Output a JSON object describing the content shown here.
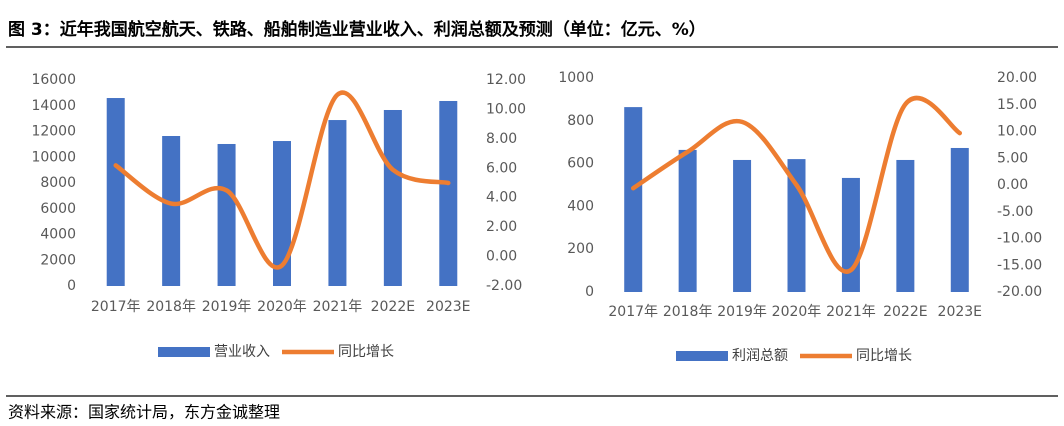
{
  "title": "图 3：近年我国航空航天、铁路、船舶制造业营业收入、利润总额及预测（单位：亿元、%）",
  "source": "资料来源：国家统计局，东方金诚整理",
  "chart_data": [
    {
      "type": "combo",
      "categories": [
        "2017年",
        "2018年",
        "2019年",
        "2020年",
        "2021年",
        "2022E",
        "2023E"
      ],
      "series": [
        {
          "name": "营业收入",
          "type": "bar",
          "color": "#4472c4",
          "values": [
            14600,
            11650,
            11030,
            11260,
            12890,
            13670,
            14370
          ]
        },
        {
          "name": "同比增长",
          "type": "line",
          "axis": "y2",
          "color": "#ed7d31",
          "values": [
            6.2,
            3.6,
            4.5,
            -0.6,
            11.0,
            5.9,
            5.0
          ]
        }
      ],
      "ylim": [
        0,
        16000
      ],
      "yticks": [
        0,
        2000,
        4000,
        6000,
        8000,
        10000,
        12000,
        14000,
        16000
      ],
      "y2lim": [
        -2,
        12
      ],
      "y2ticks": [
        {
          "value": -2,
          "label": "-2.00"
        },
        {
          "value": 0,
          "label": "0.00"
        },
        {
          "value": 2,
          "label": "2.00"
        },
        {
          "value": 4,
          "label": "4.00"
        },
        {
          "value": 6,
          "label": "6.00"
        },
        {
          "value": 8,
          "label": "8.00"
        },
        {
          "value": 10,
          "label": "10.00"
        },
        {
          "value": 12,
          "label": "12.00"
        }
      ],
      "legend": "bottom"
    },
    {
      "type": "combo",
      "categories": [
        "2017年",
        "2018年",
        "2019年",
        "2020年",
        "2021年",
        "2022E",
        "2023E"
      ],
      "series": [
        {
          "name": "利润总额",
          "type": "bar",
          "color": "#4472c4",
          "values": [
            864,
            664,
            617,
            621,
            533,
            617,
            673
          ]
        },
        {
          "name": "同比增长",
          "type": "line",
          "axis": "y2",
          "color": "#ed7d31",
          "values": [
            -0.6,
            6.2,
            11.8,
            0,
            -15.9,
            15.1,
            9.7
          ]
        }
      ],
      "ylim": [
        0,
        1000
      ],
      "yticks": [
        0,
        200,
        400,
        600,
        800,
        1000
      ],
      "y2lim": [
        -20,
        20
      ],
      "y2ticks": [
        {
          "value": -20,
          "label": "-20.00"
        },
        {
          "value": -15,
          "label": "-15.00"
        },
        {
          "value": -10,
          "label": "-10.00"
        },
        {
          "value": -5,
          "label": "-5.00"
        },
        {
          "value": 0,
          "label": "0.00"
        },
        {
          "value": 5,
          "label": "5.00"
        },
        {
          "value": 10,
          "label": "10.00"
        },
        {
          "value": 15,
          "label": "15.00"
        },
        {
          "value": 20,
          "label": "20.00"
        }
      ],
      "legend": "bottom"
    }
  ]
}
